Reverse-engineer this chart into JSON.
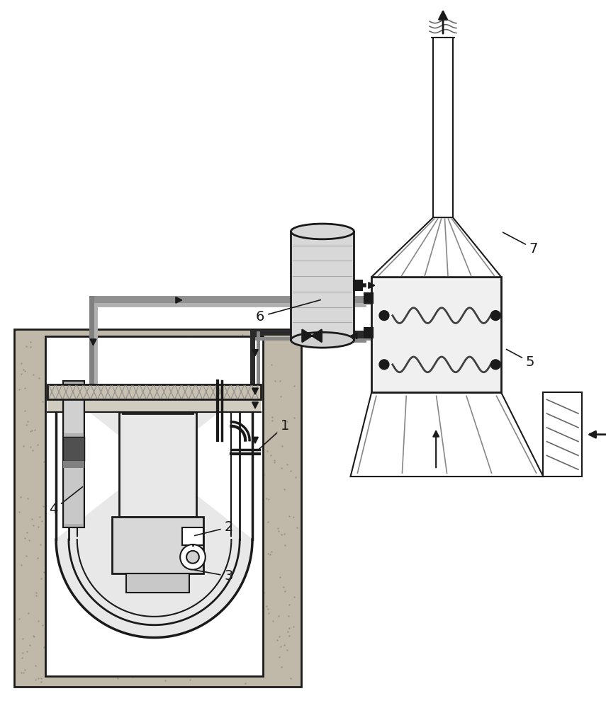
{
  "bg_color": "#ffffff",
  "lc": "#1a1a1a",
  "gray_fill": "#c0c0c0",
  "light_gray": "#e0e0e0",
  "dark_pipe": "#2a2a2a",
  "gray_pipe": "#888888",
  "green_pipe": "#909090",
  "concrete_color": "#c0b8a8",
  "concrete_dark": "#a09888",
  "vessel_fill": "#e8e8e8",
  "sodium_fill": "#d0ccc0",
  "slab_fill": "#c8c0b0",
  "tank_fill": "#d8d8d8",
  "ahx_fill": "#f0f0f0",
  "dhx_fill": "#b8b8b8",
  "coil_color": "#404040",
  "font_size": 14,
  "label_1": "1",
  "label_2": "2",
  "label_3": "3",
  "label_4": "4",
  "label_5": "5",
  "label_6": "6",
  "label_7": "7"
}
